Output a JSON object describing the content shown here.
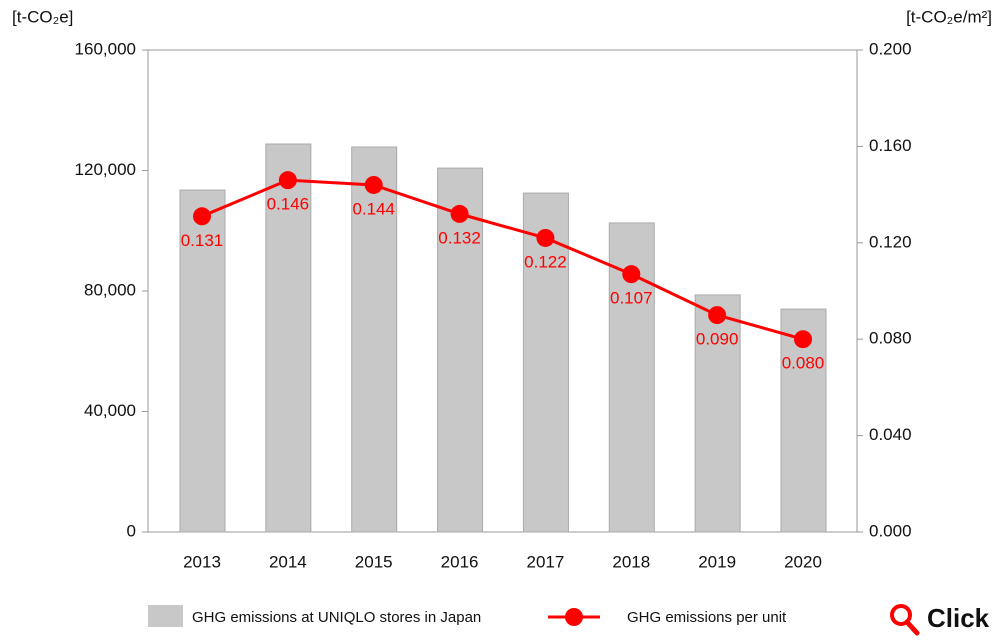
{
  "chart_data": {
    "type": "bar",
    "y_label": "[t-CO₂e]",
    "y2_label": "[t-CO₂e/m²]",
    "categories": [
      "2013",
      "2014",
      "2015",
      "2016",
      "2017",
      "2018",
      "2019",
      "2020"
    ],
    "series": [
      {
        "name": "GHG emissions at UNIQLO stores in Japan",
        "type": "bar",
        "color": "#c8c8c8",
        "values": [
          113500,
          128800,
          127800,
          120800,
          112500,
          102600,
          78700,
          74000
        ]
      },
      {
        "name": "GHG emissions per unit",
        "type": "line",
        "axis": "y2",
        "color": "#ff0000",
        "values": [
          0.131,
          0.146,
          0.144,
          0.132,
          0.122,
          0.107,
          0.09,
          0.08
        ],
        "value_labels": [
          "0.131",
          "0.146",
          "0.144",
          "0.132",
          "0.122",
          "0.107",
          "0.090",
          "0.080"
        ]
      }
    ],
    "ylim": [
      0,
      160000
    ],
    "yticks": [
      0,
      {
        "value": 40000,
        "label": "40,000"
      },
      {
        "value": 80000,
        "label": "80,000"
      },
      {
        "value": 120000,
        "label": "120,000"
      },
      {
        "value": 160000,
        "label": "160,000"
      }
    ],
    "y2lim": [
      0,
      0.2
    ],
    "y2ticks": [
      {
        "value": 0,
        "label": "0.000"
      },
      {
        "value": 0.04,
        "label": "0.040"
      },
      {
        "value": 0.08,
        "label": "0.080"
      },
      {
        "value": 0.12,
        "label": "0.120"
      },
      {
        "value": 0.16,
        "label": "0.160"
      },
      {
        "value": 0.2,
        "label": "0.200"
      }
    ],
    "grid": false,
    "legend": "bottom"
  },
  "button": {
    "label": "Click"
  }
}
